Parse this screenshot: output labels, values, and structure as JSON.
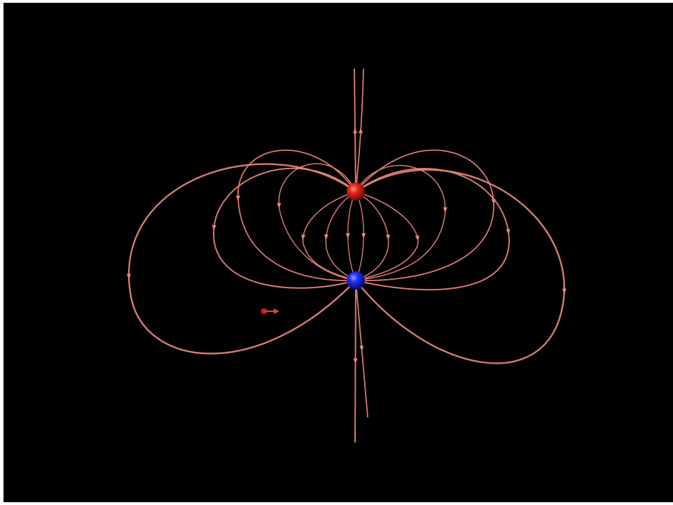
{
  "scene": {
    "background_color": "#000000",
    "frame_color": "#ffffff",
    "field_line_color": "#e8857a",
    "positive_charge": {
      "color": "#d0140a",
      "shape": "sphere"
    },
    "negative_charge": {
      "color": "#1a20e0",
      "shape": "sphere"
    },
    "probe": {
      "color": "#c41810",
      "icon": "small-arrow-icon"
    }
  }
}
